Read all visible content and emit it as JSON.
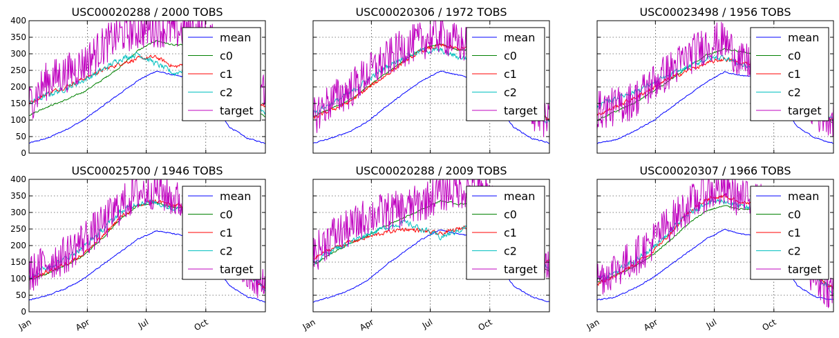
{
  "chart_data": {
    "type": "line",
    "layout": "2x3 grid",
    "shared_y_axis": true,
    "x_tick_labels": [
      "Jan",
      "Apr",
      "Jul",
      "Oct"
    ],
    "ylim": [
      0,
      400
    ],
    "yticks": [
      0,
      50,
      100,
      150,
      200,
      250,
      300,
      350,
      400
    ],
    "grid": true,
    "legend_placement": "upper right",
    "series_names": [
      "mean",
      "c0",
      "c1",
      "c2",
      "target"
    ],
    "series_colors": {
      "mean": "#0000ff",
      "c0": "#008000",
      "c1": "#ff0000",
      "c2": "#00bfbf",
      "target": "#bf00bf"
    },
    "panels": [
      {
        "title": "USC00020288 / 2000    TOBS",
        "series": {
          "mean": [
            30,
            45,
            70,
            100,
            140,
            180,
            220,
            248,
            235,
            225,
            160,
            80,
            45,
            30
          ],
          "c0": [
            115,
            140,
            160,
            185,
            220,
            260,
            310,
            340,
            325,
            330,
            300,
            220,
            150,
            110
          ],
          "c1": [
            150,
            180,
            200,
            225,
            250,
            270,
            285,
            290,
            260,
            275,
            280,
            230,
            170,
            140
          ],
          "c2": [
            150,
            175,
            195,
            220,
            250,
            285,
            300,
            270,
            240,
            265,
            285,
            230,
            165,
            120
          ],
          "target": [
            150,
            220,
            240,
            270,
            320,
            360,
            370,
            380,
            370,
            370,
            340,
            240,
            180,
            200
          ]
        }
      },
      {
        "title": "USC00020306 / 1972    TOBS",
        "series": {
          "mean": [
            30,
            45,
            65,
            95,
            140,
            180,
            220,
            248,
            235,
            225,
            160,
            80,
            45,
            30
          ],
          "c0": [
            110,
            135,
            160,
            200,
            240,
            280,
            315,
            330,
            310,
            315,
            290,
            200,
            140,
            100
          ],
          "c1": [
            105,
            130,
            155,
            195,
            235,
            275,
            310,
            325,
            315,
            320,
            290,
            200,
            140,
            100
          ],
          "c2": [
            120,
            150,
            180,
            220,
            260,
            290,
            310,
            310,
            290,
            285,
            270,
            190,
            130,
            90
          ],
          "target": [
            110,
            160,
            190,
            240,
            280,
            320,
            340,
            360,
            330,
            320,
            300,
            220,
            130,
            90
          ]
        }
      },
      {
        "title": "USC00023498 / 1956    TOBS",
        "series": {
          "mean": [
            30,
            40,
            65,
            95,
            135,
            175,
            215,
            245,
            235,
            225,
            160,
            80,
            45,
            30
          ],
          "c0": [
            100,
            125,
            150,
            185,
            220,
            260,
            295,
            315,
            305,
            300,
            280,
            200,
            130,
            90
          ],
          "c1": [
            115,
            140,
            165,
            195,
            225,
            250,
            270,
            285,
            270,
            275,
            270,
            200,
            130,
            100
          ],
          "c2": [
            140,
            165,
            185,
            210,
            235,
            260,
            285,
            290,
            265,
            260,
            260,
            195,
            125,
            100
          ],
          "target": [
            130,
            140,
            160,
            210,
            250,
            290,
            330,
            340,
            270,
            290,
            300,
            200,
            120,
            110
          ]
        }
      },
      {
        "title": "USC00025700 / 1946    TOBS",
        "series": {
          "mean": [
            35,
            50,
            70,
            100,
            140,
            180,
            220,
            245,
            235,
            225,
            160,
            80,
            45,
            30
          ],
          "c0": [
            95,
            115,
            140,
            170,
            220,
            280,
            320,
            330,
            315,
            315,
            290,
            200,
            120,
            70
          ],
          "c1": [
            100,
            120,
            145,
            175,
            225,
            285,
            320,
            335,
            320,
            320,
            295,
            200,
            120,
            70
          ],
          "c2": [
            105,
            135,
            160,
            195,
            245,
            300,
            330,
            330,
            310,
            305,
            285,
            195,
            115,
            65
          ],
          "target": [
            110,
            150,
            170,
            220,
            260,
            320,
            360,
            370,
            340,
            320,
            290,
            200,
            110,
            70
          ]
        }
      },
      {
        "title": "USC00020288 / 2009    TOBS",
        "series": {
          "mean": [
            30,
            45,
            65,
            95,
            140,
            180,
            220,
            248,
            235,
            225,
            160,
            80,
            45,
            30
          ],
          "c0": [
            140,
            175,
            205,
            230,
            260,
            285,
            310,
            335,
            325,
            330,
            300,
            220,
            160,
            120
          ],
          "c1": [
            160,
            190,
            210,
            225,
            240,
            250,
            245,
            235,
            250,
            270,
            285,
            230,
            170,
            150
          ],
          "c2": [
            150,
            185,
            210,
            235,
            255,
            270,
            250,
            225,
            245,
            275,
            285,
            230,
            160,
            130
          ],
          "target": [
            170,
            230,
            250,
            290,
            300,
            310,
            330,
            360,
            370,
            370,
            340,
            240,
            180,
            160
          ]
        }
      },
      {
        "title": "USC00020307 / 1966    TOBS",
        "series": {
          "mean": [
            35,
            45,
            70,
            100,
            140,
            180,
            220,
            248,
            235,
            225,
            160,
            80,
            45,
            35
          ],
          "c0": [
            90,
            110,
            135,
            170,
            215,
            265,
            305,
            320,
            310,
            305,
            285,
            200,
            110,
            70
          ],
          "c1": [
            85,
            110,
            140,
            180,
            235,
            300,
            340,
            350,
            330,
            325,
            295,
            200,
            110,
            70
          ],
          "c2": [
            95,
            120,
            150,
            190,
            240,
            295,
            330,
            335,
            315,
            310,
            285,
            195,
            105,
            60
          ],
          "target": [
            100,
            130,
            160,
            210,
            270,
            320,
            360,
            370,
            340,
            330,
            300,
            200,
            100,
            60
          ]
        }
      }
    ]
  }
}
